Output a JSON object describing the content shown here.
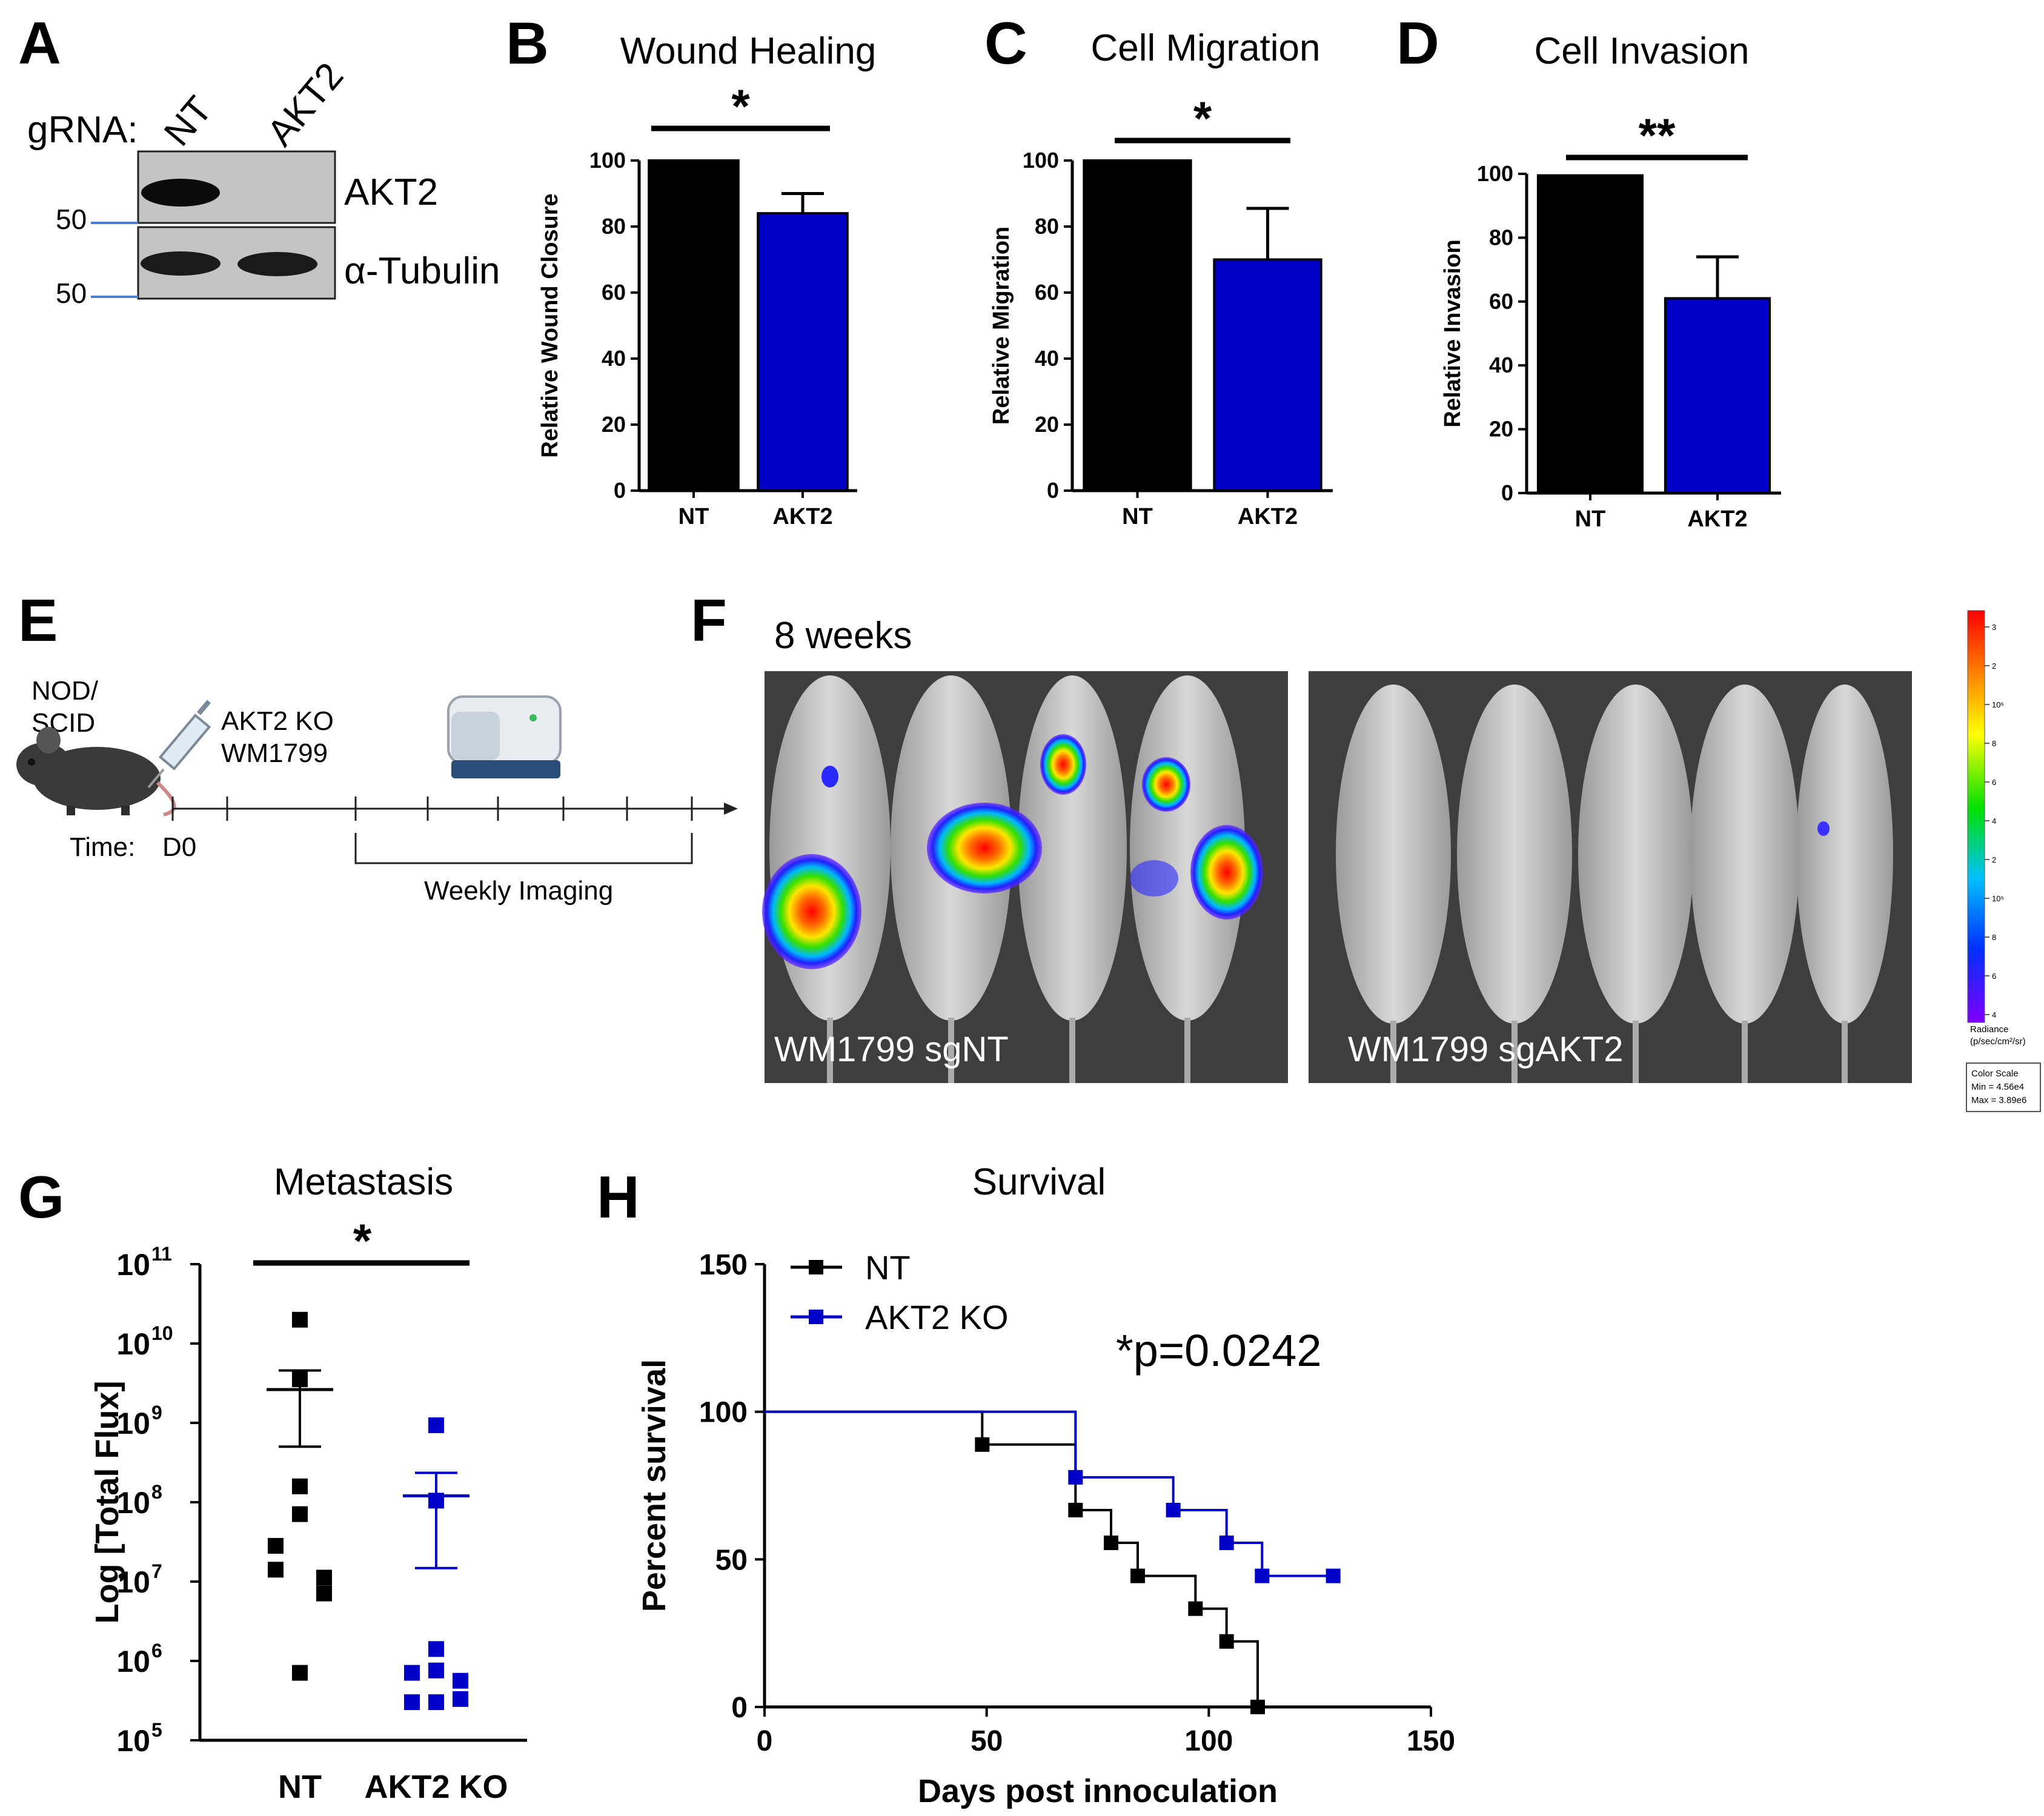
{
  "panels": {
    "A": {
      "letter": "A",
      "grna_label": "gRNA:",
      "lanes": [
        "NT",
        "AKT2"
      ],
      "bands": [
        "AKT2",
        "α-Tubulin"
      ],
      "markers": [
        "50",
        "50"
      ]
    },
    "B": {
      "letter": "B"
    },
    "C": {
      "letter": "C"
    },
    "D": {
      "letter": "D"
    },
    "E": {
      "letter": "E",
      "mouse_label_1": "NOD/",
      "mouse_label_2": "SCID",
      "injection_1": "AKT2 KO",
      "injection_2": "WM1799",
      "time_label": "Time:",
      "day0": "D0",
      "imaging": "Weekly Imaging"
    },
    "F": {
      "letter": "F",
      "timepoint": "8 weeks",
      "left_label": "WM1799 sgNT",
      "right_label": "WM1799 sgAKT2",
      "colorbar_unit_1": "Radiance",
      "colorbar_unit_2": "(p/sec/cm²/sr)",
      "colorscale_title": "Color Scale",
      "colorscale_min": "Min = 4.56e4",
      "colorscale_max": "Max = 3.89e6",
      "colorbar_ticks": [
        "3",
        "2",
        "10⁶",
        "8",
        "6",
        "4",
        "2",
        "10⁵",
        "8",
        "6",
        "4"
      ]
    },
    "G": {
      "letter": "G"
    },
    "H": {
      "letter": "H"
    }
  },
  "chart_data": [
    {
      "panel": "B",
      "type": "bar",
      "title": "Wound Healing",
      "categories": [
        "NT",
        "AKT2"
      ],
      "values": [
        100,
        84
      ],
      "errors": [
        0,
        6
      ],
      "colors": [
        "#000000",
        "#0000c8"
      ],
      "ylabel": "Relative Wound Closure",
      "ylim": [
        0,
        100
      ],
      "yticks": [
        0,
        20,
        40,
        60,
        80,
        100
      ],
      "significance": "*"
    },
    {
      "panel": "C",
      "type": "bar",
      "title": "Cell Migration",
      "categories": [
        "NT",
        "AKT2"
      ],
      "values": [
        100,
        70
      ],
      "errors": [
        0,
        15.5
      ],
      "colors": [
        "#000000",
        "#0000c8"
      ],
      "ylabel": "Relative Migration",
      "ylim": [
        0,
        100
      ],
      "yticks": [
        0,
        20,
        40,
        60,
        80,
        100
      ],
      "significance": "*"
    },
    {
      "panel": "D",
      "type": "bar",
      "title": "Cell Invasion",
      "categories": [
        "NT",
        "AKT2"
      ],
      "values": [
        99.5,
        61
      ],
      "errors": [
        0,
        13
      ],
      "colors": [
        "#000000",
        "#0000c8"
      ],
      "ylabel": "Relative Invasion",
      "ylim": [
        0,
        100
      ],
      "yticks": [
        0,
        20,
        40,
        60,
        80,
        100
      ],
      "significance": "**"
    },
    {
      "panel": "G",
      "type": "scatter",
      "title": "Metastasis",
      "categories": [
        "NT",
        "AKT2 KO"
      ],
      "ylabel": "Log [Total Flux]",
      "ylim_log10": [
        5,
        11
      ],
      "ytick_labels": [
        "10",
        "10",
        "10",
        "10",
        "10",
        "10",
        "10"
      ],
      "ytick_exponents": [
        "5",
        "6",
        "7",
        "8",
        "9",
        "10",
        "11"
      ],
      "significance": "*",
      "series": [
        {
          "name": "NT",
          "color": "#000000",
          "log10_values": [
            10.3,
            9.55,
            8.2,
            7.85,
            7.45,
            7.05,
            7.15,
            6.85,
            5.85
          ],
          "mean_log10": 9.42,
          "sem_upper_log10": 9.66,
          "sem_lower_log10": 8.7
        },
        {
          "name": "AKT2 KO",
          "color": "#0000c8",
          "log10_values": [
            8.97,
            8.02,
            6.15,
            5.88,
            5.85,
            5.75,
            5.48,
            5.52,
            5.48
          ],
          "mean_log10": 8.08,
          "sem_upper_log10": 8.37,
          "sem_lower_log10": 7.17
        }
      ]
    },
    {
      "panel": "H",
      "type": "line",
      "title": "Survival",
      "xlabel": "Days post innoculation",
      "ylabel": "Percent survival",
      "xlim": [
        0,
        150
      ],
      "ylim": [
        0,
        150
      ],
      "xticks": [
        0,
        50,
        100,
        150
      ],
      "yticks": [
        0,
        50,
        100,
        150
      ],
      "annotation": "*p=0.0242",
      "series": [
        {
          "name": "NT",
          "color": "#000000",
          "steps": [
            [
              0,
              100
            ],
            [
              49,
              88.9
            ],
            [
              70,
              66.7
            ],
            [
              78,
              55.6
            ],
            [
              84,
              44.4
            ],
            [
              97,
              33.3
            ],
            [
              104,
              22.2
            ],
            [
              111,
              0
            ]
          ],
          "censor": []
        },
        {
          "name": "AKT2 KO",
          "color": "#0000c8",
          "steps": [
            [
              0,
              100
            ],
            [
              70,
              77.8
            ],
            [
              92,
              66.7
            ],
            [
              104,
              55.6
            ],
            [
              112,
              44.4
            ]
          ],
          "censor": [
            [
              128,
              44.4
            ]
          ]
        }
      ]
    }
  ]
}
